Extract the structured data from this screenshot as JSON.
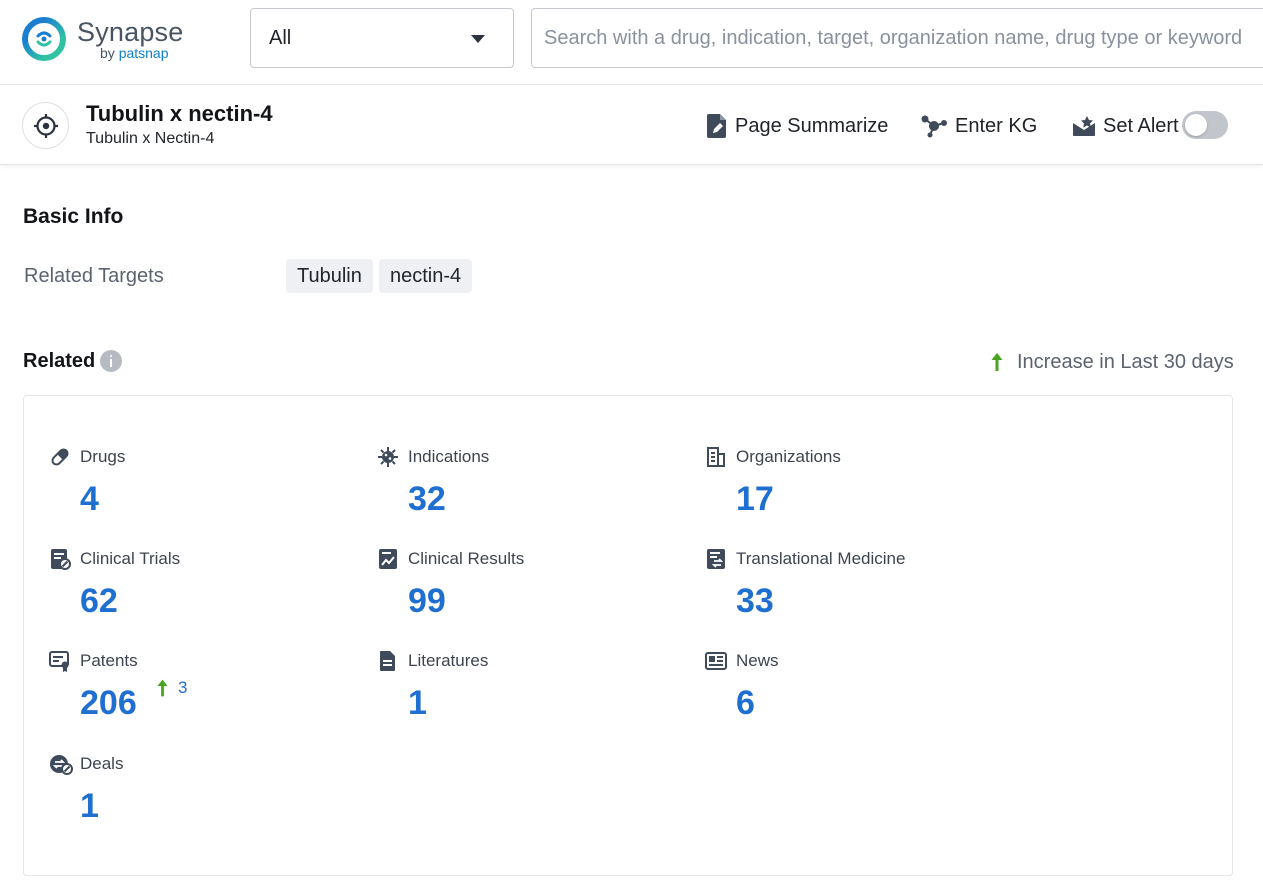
{
  "app": {
    "name": "Synapse",
    "by_prefix": "by ",
    "by_brand": "patsnap",
    "brand_color": "#1f8ab5",
    "accent_color": "#1f6fd1",
    "increase_color": "#4aa421"
  },
  "search": {
    "scope_value": "All",
    "placeholder": "Search with a drug, indication, target, organization name, drug type or keyword"
  },
  "entity": {
    "title": "Tubulin x nectin-4",
    "subtitle": "Tubulin x Nectin-4",
    "icon": "target-icon"
  },
  "actions": {
    "page_summarize": "Page Summarize",
    "enter_kg": "Enter KG",
    "set_alert": "Set Alert",
    "alert_enabled": false
  },
  "basic_info": {
    "title": "Basic Info",
    "related_targets_label": "Related Targets",
    "related_targets": [
      "Tubulin",
      "nectin-4"
    ]
  },
  "related": {
    "title": "Related",
    "legend": "Increase in Last 30 days",
    "stats": [
      {
        "label": "Drugs",
        "value": "4",
        "icon": "pill-icon"
      },
      {
        "label": "Indications",
        "value": "32",
        "icon": "virus-icon"
      },
      {
        "label": "Organizations",
        "value": "17",
        "icon": "building-icon"
      },
      {
        "label": "Clinical Trials",
        "value": "62",
        "icon": "clinical-trial-icon"
      },
      {
        "label": "Clinical Results",
        "value": "99",
        "icon": "chart-report-icon"
      },
      {
        "label": "Translational Medicine",
        "value": "33",
        "icon": "translational-medicine-icon"
      },
      {
        "label": "Patents",
        "value": "206",
        "increase": "3",
        "icon": "patent-icon"
      },
      {
        "label": "Literatures",
        "value": "1",
        "icon": "document-icon"
      },
      {
        "label": "News",
        "value": "6",
        "icon": "newspaper-icon"
      },
      {
        "label": "Deals",
        "value": "1",
        "icon": "deal-icon"
      }
    ]
  }
}
